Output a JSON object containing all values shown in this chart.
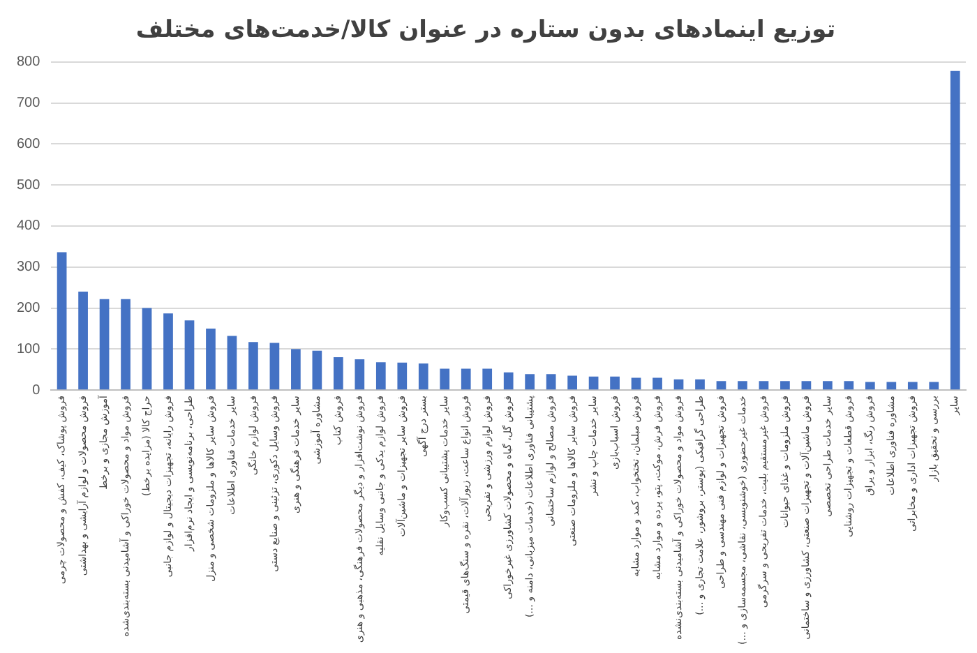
{
  "chart_data": {
    "type": "bar",
    "title": "توزیع اینمادهای بدون ستاره در عنوان کالا/خدمت‌های مختلف",
    "categories": [
      "فروش پوشاک، کیف، کفش و محصولات چرمی",
      "فروش محصولات و لوازم آرایشی و بهداشتی",
      "آموزش مجازی و برخط",
      "فروش مواد و محصولات خوراکی و آشامیدنی بسته‌بندی‌شده",
      "حراج کالا (مزایده برخط)",
      "فروش رایانه، تجهیزات دیجیتال و لوازم جانبی",
      "طراحی، برنامه‌نویسی و ایجاد نرم‌افزار",
      "فروش سایر کالاها و ملزومات شخصی و منزل",
      "سایر خدمات فناوری اطلاعات",
      "فروش لوازم خانگی",
      "فروش وسایل دکوری، تزئینی و صنایع دستی",
      "سایر خدمات فرهنگی و هنری",
      "مشاوره آموزشی",
      "فروش کتاب",
      "فروش نوشت‌افزار و دیگر محصولات فرهنگی، مذهبی و هنری",
      "فروش لوازم یدکی و جانبی وسایل نقلیه",
      "فروش سایر تجهیزات و ماشین‌آلات",
      "بستر درج آگهی",
      "سایر خدمات پشتیبانی کسب‌وکار",
      "فروش انواع ساعت، زیورآلات، نقره و سنگ‌های قیمتی",
      "فروش لوازم ورزشی و تفریحی",
      "فروش گل، گیاه و محصولات کشاورزی غیرخوراکی",
      "پشتیبانی فناوری اطلاعات (خدمات میزبانی، دامنه و ...)",
      "فروش مصالح و لوازم ساختمانی",
      "فروش سایر کالاها و ملزومات صنعتی",
      "سایر خدمات چاپ و نشر",
      "فروش اسباب‌بازی",
      "فروش مبلمان، تختخواب، کمد و موارد مشابه",
      "فروش فرش، موکت، پتو، پرده و موارد مشابه",
      "فروش مواد و محصولات خوراکی و آشامیدنی بسته‌بندی‌نشده",
      "طراحی گرافیکی (پوستر، بروشور، علامت تجاری و ...)",
      "فروش تجهیزات و لوازم فنی مهندسی و طراحی",
      "خدمات غیرحضوری (خوشنویسی، نقاشی، مجسمه‌سازی و ...)",
      "فروش غیرمستقیم بلیت، خدمات تفریحی و سرگرمی",
      "فروش ملزومات و غذای حیوانات",
      "فروش ماشین‌آلات و تجهیزات صنعتی، کشاورزی و ساختمانی",
      "سایر خدمات طراحی تخصصی",
      "فروش قطعات و تجهیزات روشنایی",
      "فروش رنگ، ابزار و یراق",
      "مشاوره فناوری اطلاعات",
      "فروش تجهیزات اداری و مخابراتی",
      "بررسی و تحقیق بازار",
      "سایر"
    ],
    "values": [
      336,
      240,
      222,
      222,
      200,
      187,
      170,
      150,
      132,
      117,
      115,
      100,
      96,
      80,
      75,
      68,
      67,
      65,
      52,
      52,
      52,
      43,
      39,
      39,
      35,
      33,
      33,
      30,
      30,
      26,
      26,
      22,
      22,
      22,
      22,
      22,
      22,
      22,
      20,
      20,
      20,
      20,
      778
    ],
    "color": "#4472c4",
    "ylim": [
      0,
      800
    ],
    "yticks": [
      0,
      100,
      200,
      300,
      400,
      500,
      600,
      700,
      800
    ],
    "grid": "y"
  }
}
